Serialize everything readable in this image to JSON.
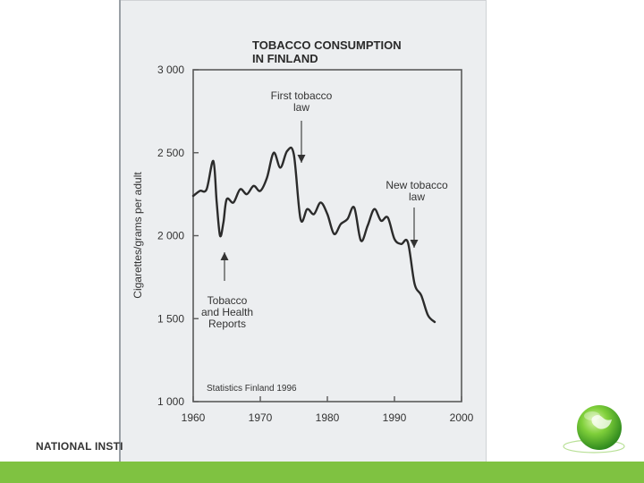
{
  "footer": {
    "org_text": "NATIONAL INSTI",
    "bar_color": "#7fc241"
  },
  "logo": {
    "icon": "green-globe-icon"
  },
  "chart_data": {
    "type": "line",
    "title_line1": "TOBACCO CONSUMPTION",
    "title_line2": "IN FINLAND",
    "ylabel": "Cigarettes/grams per adult",
    "xlabel": "",
    "xlim": [
      1960,
      2000
    ],
    "ylim": [
      1000,
      3000
    ],
    "x_ticks": [
      "1960",
      "1970",
      "1980",
      "1990",
      "2000"
    ],
    "y_ticks": [
      "1 000",
      "1 500",
      "2 000",
      "2 500",
      "3 000"
    ],
    "grid": false,
    "source": "Statistics Finland 1996",
    "annotations": [
      {
        "id": "first-law",
        "lines": [
          "First tobacco",
          "law"
        ],
        "x": 1976,
        "y": 2430,
        "arrow": "down"
      },
      {
        "id": "new-law",
        "lines": [
          "New tobacco",
          "law"
        ],
        "x": 1993,
        "y": 1930,
        "arrow": "down"
      },
      {
        "id": "health-reports",
        "lines": [
          "Tobacco",
          "and Health",
          "Reports"
        ],
        "x": 1965,
        "y": 1900,
        "arrow": "up"
      }
    ],
    "series": [
      {
        "x": [
          1960,
          1961,
          1962,
          1963,
          1963.5,
          1964,
          1964.5,
          1965,
          1966,
          1967,
          1968,
          1969,
          1970,
          1971,
          1972,
          1973,
          1974,
          1975,
          1976,
          1977,
          1978,
          1979,
          1980,
          1981,
          1982,
          1983,
          1984,
          1985,
          1986,
          1987,
          1988,
          1989,
          1990,
          1991,
          1992,
          1993,
          1994,
          1995,
          1996
        ],
        "y": [
          2240,
          2270,
          2280,
          2450,
          2200,
          2000,
          2080,
          2220,
          2200,
          2280,
          2250,
          2300,
          2270,
          2350,
          2500,
          2410,
          2510,
          2490,
          2100,
          2160,
          2130,
          2200,
          2130,
          2010,
          2070,
          2100,
          2170,
          1970,
          2060,
          2160,
          2090,
          2110,
          1980,
          1950,
          1960,
          1710,
          1640,
          1520,
          1480
        ]
      }
    ]
  }
}
